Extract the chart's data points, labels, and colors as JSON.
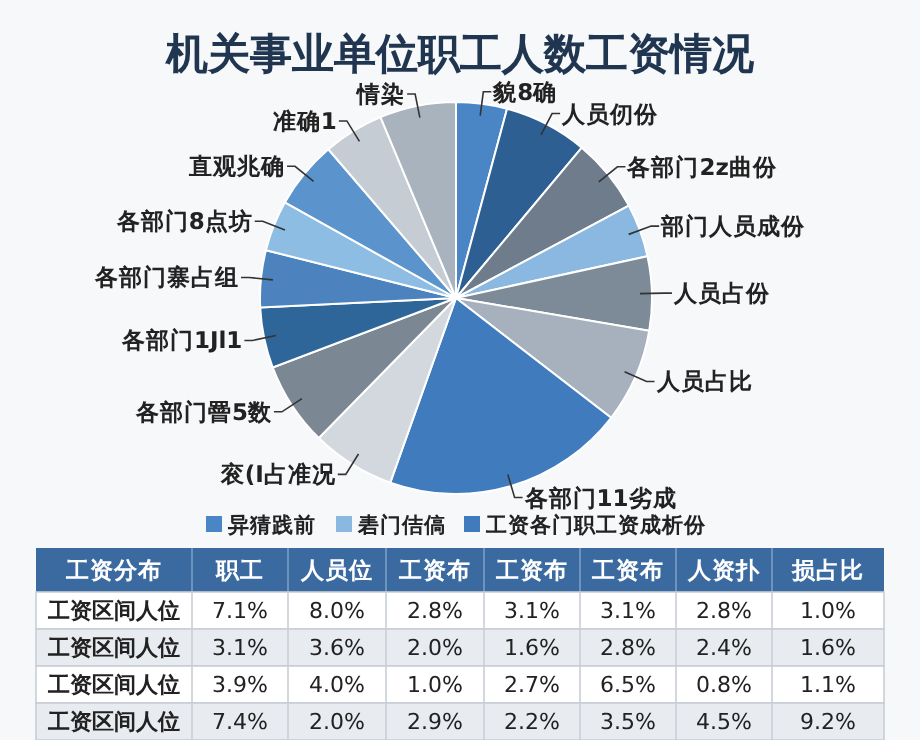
{
  "chart_data": [
    {
      "type": "pie",
      "title": "机关事业单位职工人数工资情况",
      "categories": [
        "貌8确",
        "人员仞份",
        "各部门2z曲份",
        "部门人员成份",
        "人员占份",
        "人员占比",
        "各部门11劣成",
        "衮(I占准况",
        "各部门罾5数",
        "各部门1Jl1",
        "各部门寨占组",
        "各部门8点坊",
        "直观兆确",
        "准确1",
        "情染"
      ],
      "values": [
        4.2,
        6.9,
        6.1,
        4.4,
        6.1,
        7.8,
        20,
        6.9,
        6.9,
        5,
        4.7,
        4.2,
        5.6,
        5,
        6.3
      ],
      "colors": [
        "#4a86c5",
        "#2d5f93",
        "#6e7c8c",
        "#8ab8e0",
        "#7d8a98",
        "#a7b1bd",
        "#3f7bbd",
        "#d3d8de",
        "#7c8794",
        "#2f6699",
        "#4c83bf",
        "#8dbde3",
        "#5b93cc",
        "#c5ccd4",
        "#a9b3be"
      ],
      "annotations": [
        "异猜践前",
        "砉门佶傐",
        "工资各门职工资成析份"
      ]
    },
    {
      "type": "heatmap",
      "ylabel": "工资分布",
      "categories": [
        "职工",
        "人员位",
        "工资布",
        "工资布",
        "工资布",
        "人资扑",
        "损占比"
      ],
      "y_categories": [
        "工资区间人位",
        "工资区间人位",
        "工资区间人位",
        "工资区间人位"
      ],
      "cells": [
        [
          7.1,
          8.0,
          2.8,
          3.1,
          3.1,
          2.8,
          1.0
        ],
        [
          3.1,
          3.6,
          2.0,
          1.6,
          2.8,
          2.4,
          1.6
        ],
        [
          3.9,
          4.0,
          1.0,
          2.7,
          6.5,
          0.8,
          1.1
        ],
        [
          7.4,
          2.0,
          2.9,
          2.2,
          3.5,
          4.5,
          9.2
        ]
      ],
      "cell_labels": [
        [
          "7.1%",
          "8.0%",
          "2.8%",
          "3.1%",
          "3.1%",
          "2.8%",
          "1.0%"
        ],
        [
          "3.1%",
          "3.6%",
          "2.0%",
          "1.6%",
          "2.8%",
          "2.4%",
          "1.6%"
        ],
        [
          "3.9%",
          "4.0%",
          "1.0%",
          "2.7%",
          "6.5%",
          "0.8%",
          "1.1%"
        ],
        [
          "7.4%",
          "2.0%",
          "2.9%",
          "2.2%",
          "3.5%",
          "4.5%",
          "9.2%"
        ]
      ]
    }
  ]
}
